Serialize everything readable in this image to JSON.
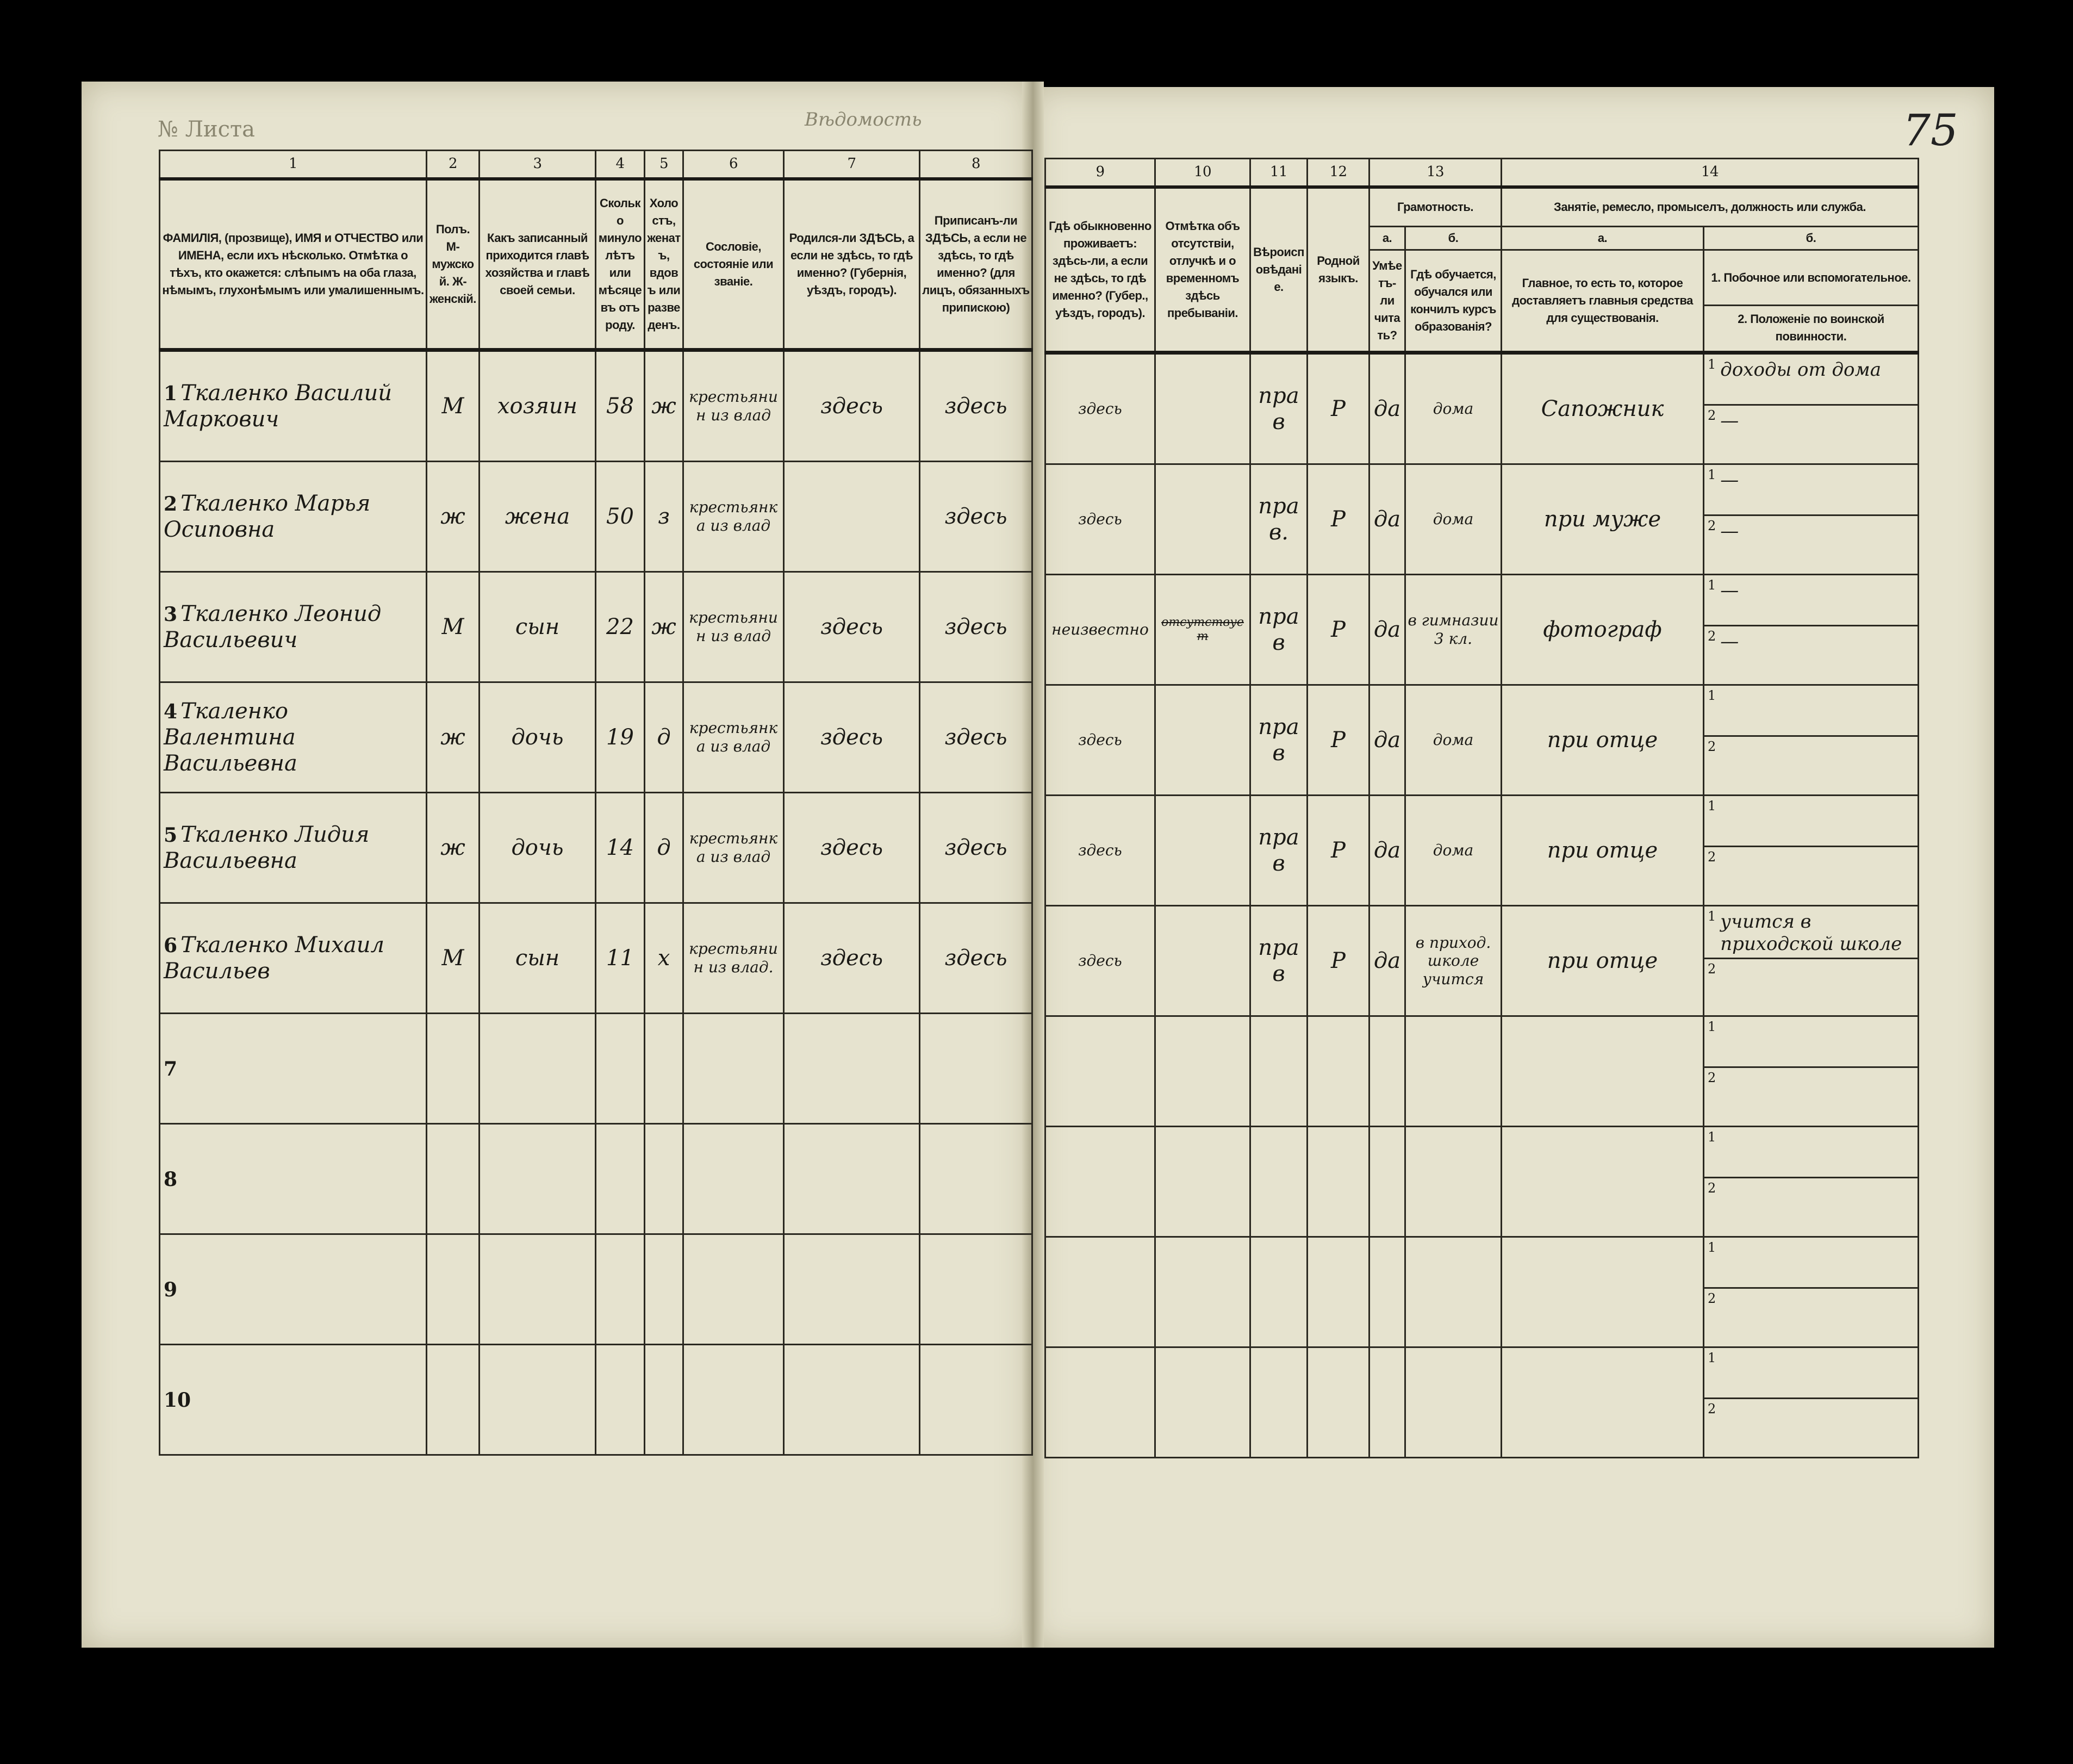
{
  "document": {
    "top_left_label": "№ Листа",
    "top_center_label": "Вѣдомость",
    "page_number": "75"
  },
  "columns_left": {
    "numbers": [
      "1",
      "2",
      "3",
      "4",
      "5",
      "6",
      "7",
      "8"
    ],
    "headers": [
      "ФАМИЛІЯ, (прозвище), ИМЯ и ОТЧЕСТВО или ИМЕНА, если ихъ нѣсколько. Отмѣтка о тѣхъ, кто окажется: слѣпымъ на оба глаза, нѣмымъ, глухонѣмымъ или умалишеннымъ.",
      "Полъ. М-мужской. Ж-женскій.",
      "Какъ записанный приходится главѣ хозяйства и главѣ своей семьи.",
      "Сколько минуло лѣтъ или мѣсяцевъ отъ роду.",
      "Холостъ, женатъ, вдовъ или разведенъ.",
      "Сословіе, состояніе или званіе.",
      "Родился-ли ЗДѢСЬ, а если не здѣсь, то гдѣ именно? (Губернія, уѣздъ, городъ).",
      "Приписанъ-ли ЗДѢСЬ, а если не здѣсь, то гдѣ именно? (для лицъ, обязанныхъ припискою)"
    ]
  },
  "columns_right": {
    "numbers": [
      "9",
      "10",
      "11",
      "12",
      "13",
      "14"
    ],
    "headers": {
      "residence": "Гдѣ обыкновенно проживаетъ: здѣсь-ли, а если не здѣсь, то гдѣ именно? (Губер., уѣздъ, городъ).",
      "absence": "Отмѣтка объ отсутствіи, отлучкѣ и о временномъ здѣсь пребываніи.",
      "religion": "Вѣроисповѣданіе.",
      "language": "Родной языкъ.",
      "literacy": "Грамотность.",
      "literacy_a_label": "а.",
      "literacy_a": "Умѣетъ-ли читать?",
      "literacy_b_label": "б.",
      "literacy_b": "Гдѣ обучается, обучался или кончилъ курсъ образованія?",
      "occupation": "Занятіе, ремесло, промыселъ, должность или служба.",
      "occ_a_label": "а.",
      "occ_a": "Главное, то есть то, которое доставляетъ главныя средства для существованія.",
      "occ_b_label": "б.",
      "occ_b1": "1. Побочное или вспомогательное.",
      "occ_b2": "2. Положеніе по воинской повинности."
    }
  },
  "rows": [
    {
      "n": "1",
      "name": "Ткаленко Василий Маркович",
      "sex": "М",
      "relation": "хозяин",
      "age": "58",
      "marital": "ж",
      "estate": "крестьянин из влад",
      "born": "здесь",
      "registered": "здесь",
      "residence": "здесь",
      "absence": "",
      "religion": "прав",
      "language": "Р",
      "can_read": "да",
      "education": "дома",
      "occupation": "Сапожник",
      "occ_b1": "доходы от дома",
      "occ_b2": "—"
    },
    {
      "n": "2",
      "name": "Ткаленко Марья Осиповна",
      "sex": "ж",
      "relation": "жена",
      "age": "50",
      "marital": "з",
      "estate": "крестьянка из влад",
      "born": "",
      "registered": "здесь",
      "residence": "здесь",
      "absence": "",
      "religion": "прав.",
      "language": "Р",
      "can_read": "да",
      "education": "дома",
      "occupation": "при муже",
      "occ_b1": "—",
      "occ_b2": "—"
    },
    {
      "n": "3",
      "name": "Ткаленко Леонид Васильевич",
      "sex": "М",
      "relation": "сын",
      "age": "22",
      "marital": "ж",
      "estate": "крестьянин из влад",
      "born": "здесь",
      "registered": "здесь",
      "residence": "неизвестно",
      "absence": "отсутствует",
      "religion": "прав",
      "language": "Р",
      "can_read": "да",
      "education": "в гимназии 3 кл.",
      "occupation": "фотограф",
      "occ_b1": "—",
      "occ_b2": "—"
    },
    {
      "n": "4",
      "name": "Ткаленко Валентина Васильевна",
      "sex": "ж",
      "relation": "дочь",
      "age": "19",
      "marital": "д",
      "estate": "крестьянка из влад",
      "born": "здесь",
      "registered": "здесь",
      "residence": "здесь",
      "absence": "",
      "religion": "прав",
      "language": "Р",
      "can_read": "да",
      "education": "дома",
      "occupation": "при отце",
      "occ_b1": "",
      "occ_b2": ""
    },
    {
      "n": "5",
      "name": "Ткаленко Лидия Васильевна",
      "sex": "ж",
      "relation": "дочь",
      "age": "14",
      "marital": "д",
      "estate": "крестьянка из влад",
      "born": "здесь",
      "registered": "здесь",
      "residence": "здесь",
      "absence": "",
      "religion": "прав",
      "language": "Р",
      "can_read": "да",
      "education": "дома",
      "occupation": "при отце",
      "occ_b1": "",
      "occ_b2": ""
    },
    {
      "n": "6",
      "name": "Ткаленко Михаил Васильев",
      "sex": "М",
      "relation": "сын",
      "age": "11",
      "marital": "х",
      "estate": "крестьянин из влад.",
      "born": "здесь",
      "registered": "здесь",
      "residence": "здесь",
      "absence": "",
      "religion": "прав",
      "language": "Р",
      "can_read": "да",
      "education": "в приход. школе учится",
      "occupation": "при отце",
      "occ_b1": "учится в приходской школе",
      "occ_b2": ""
    },
    {
      "n": "7",
      "name": "",
      "sex": "",
      "relation": "",
      "age": "",
      "marital": "",
      "estate": "",
      "born": "",
      "registered": "",
      "residence": "",
      "absence": "",
      "religion": "",
      "language": "",
      "can_read": "",
      "education": "",
      "occupation": "",
      "occ_b1": "",
      "occ_b2": ""
    },
    {
      "n": "8",
      "name": "",
      "sex": "",
      "relation": "",
      "age": "",
      "marital": "",
      "estate": "",
      "born": "",
      "registered": "",
      "residence": "",
      "absence": "",
      "religion": "",
      "language": "",
      "can_read": "",
      "education": "",
      "occupation": "",
      "occ_b1": "",
      "occ_b2": ""
    },
    {
      "n": "9",
      "name": "",
      "sex": "",
      "relation": "",
      "age": "",
      "marital": "",
      "estate": "",
      "born": "",
      "registered": "",
      "residence": "",
      "absence": "",
      "religion": "",
      "language": "",
      "can_read": "",
      "education": "",
      "occupation": "",
      "occ_b1": "",
      "occ_b2": ""
    },
    {
      "n": "10",
      "name": "",
      "sex": "",
      "relation": "",
      "age": "",
      "marital": "",
      "estate": "",
      "born": "",
      "registered": "",
      "residence": "",
      "absence": "",
      "religion": "",
      "language": "",
      "can_read": "",
      "education": "",
      "occupation": "",
      "occ_b1": "",
      "occ_b2": ""
    }
  ],
  "sub_row_labels": [
    "1",
    "2"
  ],
  "colors": {
    "paper": "#e6e3cf",
    "ink": "#1b1a16",
    "background": "#000000"
  }
}
